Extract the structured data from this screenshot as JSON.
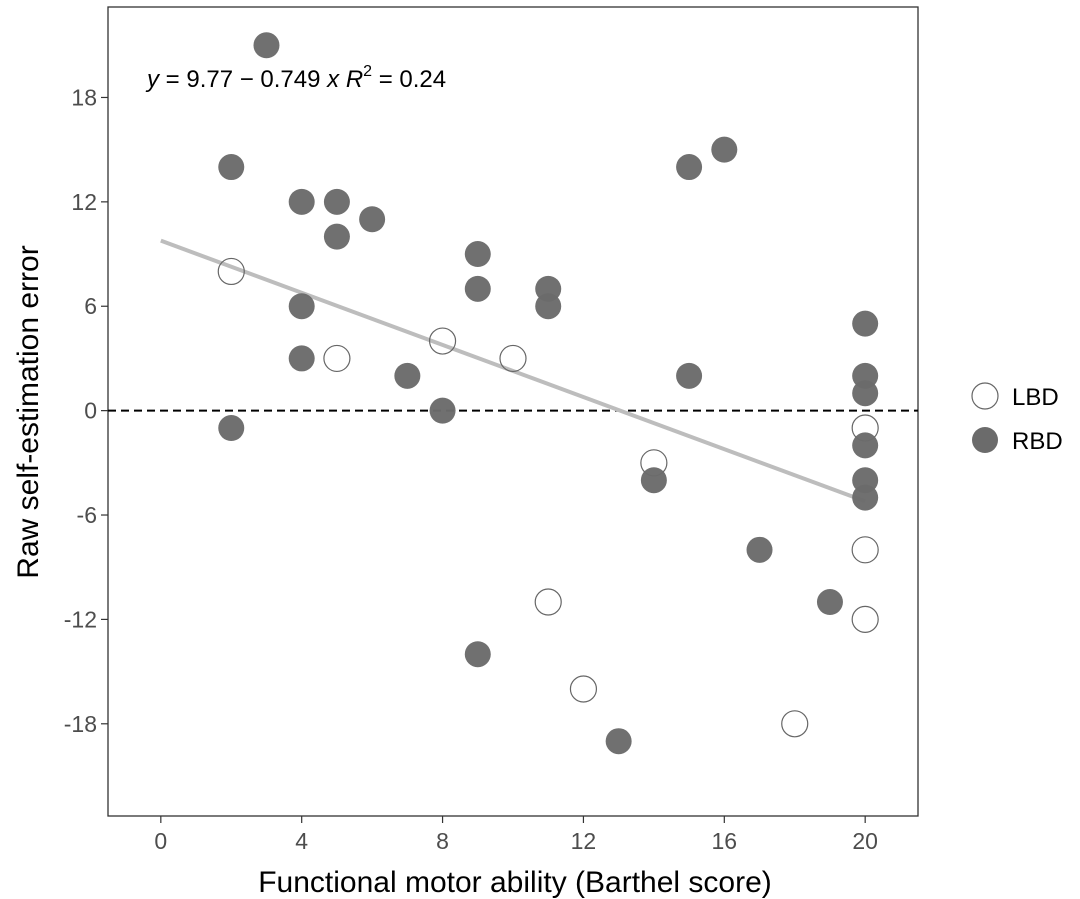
{
  "chart_data": {
    "type": "scatter",
    "xlabel": "Functional motor ability (Barthel score)",
    "ylabel": "Raw self-estimation error",
    "xlim": [
      -1.5,
      21.5
    ],
    "ylim": [
      -23.3,
      23.2
    ],
    "xticks": [
      0,
      4,
      8,
      12,
      16,
      20
    ],
    "yticks": [
      18,
      12,
      6,
      0,
      -6,
      -12,
      -18
    ],
    "xtick_labels": [
      "0",
      "4",
      "8",
      "12",
      "16",
      "20"
    ],
    "ytick_labels": [
      "18",
      "12",
      "6",
      "0",
      "-6",
      "-12",
      "-18"
    ],
    "grid": false,
    "legend_position": "right",
    "series": [
      {
        "name": "LBD",
        "style": "open",
        "points": [
          [
            2,
            8
          ],
          [
            5,
            3
          ],
          [
            8,
            4
          ],
          [
            10,
            3
          ],
          [
            11,
            -11
          ],
          [
            12,
            -16
          ],
          [
            14,
            -3
          ],
          [
            18,
            -18
          ],
          [
            20,
            -1
          ],
          [
            20,
            -8
          ],
          [
            20,
            -12
          ]
        ]
      },
      {
        "name": "RBD",
        "style": "filled",
        "points": [
          [
            2,
            14
          ],
          [
            2,
            -1
          ],
          [
            3,
            21
          ],
          [
            4,
            12
          ],
          [
            4,
            6
          ],
          [
            4,
            3
          ],
          [
            5,
            12
          ],
          [
            5,
            10
          ],
          [
            6,
            11
          ],
          [
            7,
            2
          ],
          [
            8,
            0
          ],
          [
            9,
            9
          ],
          [
            9,
            7
          ],
          [
            9,
            -14
          ],
          [
            11,
            7
          ],
          [
            11,
            6
          ],
          [
            13,
            -19
          ],
          [
            14,
            -4
          ],
          [
            15,
            14
          ],
          [
            15,
            2
          ],
          [
            16,
            15
          ],
          [
            17,
            -8
          ],
          [
            19,
            -11
          ],
          [
            20,
            5
          ],
          [
            20,
            2
          ],
          [
            20,
            1
          ],
          [
            20,
            -2
          ],
          [
            20,
            -4
          ],
          [
            20,
            -5
          ]
        ]
      }
    ],
    "fit_line": {
      "intercept": 9.77,
      "slope": -0.749,
      "x_range": [
        0,
        20
      ]
    },
    "reference_line": {
      "y": 0,
      "style": "dashed"
    },
    "annotation": {
      "y_var": "y",
      "eq_rest": " = 9.77 − 0.749 ",
      "x_var": "x",
      "r_symbol": "R",
      "r_exponent": "2",
      "r_rest": " = 0.24"
    }
  },
  "colors": {
    "filled_point": "#6b6b6b",
    "open_point_stroke": "#666666",
    "fit_line": "#bdbdbd",
    "reference_line": "#000000",
    "axis_text": "#4d4d4d",
    "panel_border": "#333333"
  }
}
